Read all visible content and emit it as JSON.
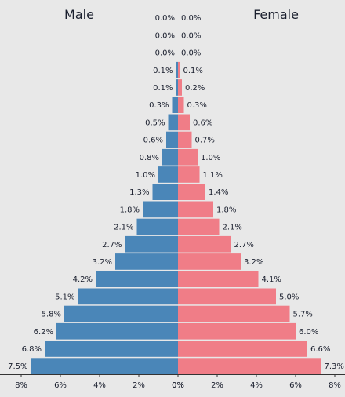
{
  "chart_data": {
    "type": "bar",
    "male_label": "Male",
    "female_label": "Female",
    "male_color": "#4a86b8",
    "female_color": "#f07d87",
    "xlim": [
      -8,
      8
    ],
    "male_values": [
      7.5,
      6.8,
      6.2,
      5.8,
      5.1,
      4.2,
      3.2,
      2.7,
      2.1,
      1.8,
      1.3,
      1.0,
      0.8,
      0.6,
      0.5,
      0.3,
      0.1,
      0.1,
      0.0,
      0.0,
      0.0
    ],
    "female_values": [
      7.3,
      6.6,
      6.0,
      5.7,
      5.0,
      4.1,
      3.2,
      2.7,
      2.1,
      1.8,
      1.4,
      1.1,
      1.0,
      0.7,
      0.6,
      0.3,
      0.2,
      0.1,
      0.0,
      0.0,
      0.0
    ],
    "male_labels": [
      "7.5%",
      "6.8%",
      "6.2%",
      "5.8%",
      "5.1%",
      "4.2%",
      "3.2%",
      "2.7%",
      "2.1%",
      "1.8%",
      "1.3%",
      "1.0%",
      "0.8%",
      "0.6%",
      "0.5%",
      "0.3%",
      "0.1%",
      "0.1%",
      "0.0%",
      "0.0%",
      "0.0%"
    ],
    "female_labels": [
      "7.3%",
      "6.6%",
      "6.0%",
      "5.7%",
      "5.0%",
      "4.1%",
      "3.2%",
      "2.7%",
      "2.1%",
      "1.8%",
      "1.4%",
      "1.1%",
      "1.0%",
      "0.7%",
      "0.6%",
      "0.3%",
      "0.2%",
      "0.1%",
      "0.0%",
      "0.0%",
      "0.0%"
    ],
    "x_ticks_left": [
      "8%",
      "6%",
      "4%",
      "2%",
      "0%"
    ],
    "x_ticks_right": [
      "0%",
      "2%",
      "4%",
      "6%",
      "8%"
    ]
  }
}
